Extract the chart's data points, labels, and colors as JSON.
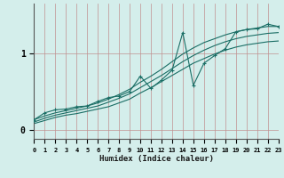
{
  "xlabel": "Humidex (Indice chaleur)",
  "bg_color": "#d4eeeb",
  "line_color": "#1a6e65",
  "x_ticks": [
    0,
    1,
    2,
    3,
    4,
    5,
    6,
    7,
    8,
    9,
    10,
    11,
    12,
    13,
    14,
    15,
    16,
    17,
    18,
    19,
    20,
    21,
    22,
    23
  ],
  "y_ticks": [
    0,
    1
  ],
  "xlim": [
    0,
    23
  ],
  "ylim": [
    -0.12,
    1.65
  ],
  "x": [
    0,
    1,
    2,
    3,
    4,
    5,
    6,
    7,
    8,
    9,
    10,
    11,
    12,
    13,
    14,
    15,
    16,
    17,
    18,
    19,
    20,
    21,
    22,
    23
  ],
  "jagged_y": [
    0.13,
    0.22,
    0.26,
    0.27,
    0.3,
    0.31,
    0.37,
    0.42,
    0.44,
    0.5,
    0.7,
    0.54,
    0.65,
    0.78,
    1.27,
    0.58,
    0.87,
    0.97,
    1.06,
    1.28,
    1.31,
    1.32,
    1.38,
    1.35
  ],
  "smooth1_y": [
    0.13,
    0.18,
    0.22,
    0.25,
    0.28,
    0.31,
    0.35,
    0.4,
    0.46,
    0.53,
    0.62,
    0.7,
    0.79,
    0.89,
    0.99,
    1.07,
    1.14,
    1.19,
    1.24,
    1.28,
    1.31,
    1.33,
    1.35,
    1.35
  ],
  "smooth2_y": [
    0.1,
    0.15,
    0.19,
    0.22,
    0.25,
    0.28,
    0.31,
    0.36,
    0.41,
    0.47,
    0.55,
    0.63,
    0.71,
    0.8,
    0.89,
    0.97,
    1.04,
    1.1,
    1.15,
    1.19,
    1.22,
    1.24,
    1.26,
    1.27
  ],
  "smooth3_y": [
    0.08,
    0.12,
    0.16,
    0.19,
    0.21,
    0.24,
    0.27,
    0.3,
    0.35,
    0.4,
    0.48,
    0.55,
    0.63,
    0.71,
    0.79,
    0.87,
    0.93,
    0.99,
    1.04,
    1.08,
    1.11,
    1.13,
    1.15,
    1.16
  ]
}
